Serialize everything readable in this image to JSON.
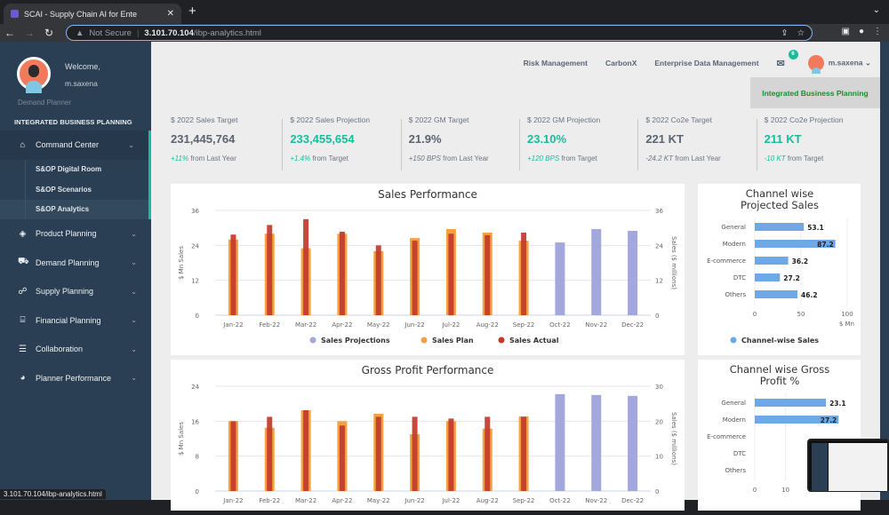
{
  "browser": {
    "tab_title": "SCAI - Supply Chain AI for Ente",
    "security": "Not Secure",
    "url_host": "3.101.70.104",
    "url_path": "/ibp-analytics.html",
    "status_url": "3.101.70.104/ibp-analytics.html"
  },
  "sidebar": {
    "welcome": "Welcome,",
    "username": "m.saxena",
    "role": "Demand Planner",
    "section": "INTEGRATED BUSINESS PLANNING",
    "items": [
      {
        "label": "Command Center",
        "icon": "home-icon"
      },
      {
        "label": "Product Planning",
        "icon": "cube-icon"
      },
      {
        "label": "Demand Planning",
        "icon": "cart-icon"
      },
      {
        "label": "Supply Planning",
        "icon": "sitemap-icon"
      },
      {
        "label": "Financial Planning",
        "icon": "bank-icon"
      },
      {
        "label": "Collaboration",
        "icon": "list-icon"
      },
      {
        "label": "Planner Performance",
        "icon": "pie-icon"
      }
    ],
    "subitems": [
      {
        "label": "S&OP Digital Room"
      },
      {
        "label": "S&OP Scenarios"
      },
      {
        "label": "S&OP Analytics"
      }
    ]
  },
  "header": {
    "links": [
      "Risk Management",
      "CarbonX",
      "Enterprise Data Management"
    ],
    "mail_count": "6",
    "user": "m.saxena",
    "active_module": "Integrated Business Planning"
  },
  "kpis": [
    {
      "label": "$ 2022 Sales Target",
      "value": "231,445,764",
      "delta": "+11%",
      "suffix": " from Last Year"
    },
    {
      "label": "$ 2022 Sales Projection",
      "value": "233,455,654",
      "delta": "+1.4%",
      "suffix": " from Target"
    },
    {
      "label": "$ 2022 GM Target",
      "value": "21.9%",
      "delta": "+150 BPS",
      "suffix": " from Last Year"
    },
    {
      "label": "$ 2022 GM Projection",
      "value": "23.10%",
      "delta": "+120 BPS",
      "suffix": " from Target"
    },
    {
      "label": "$ 2022 Co2e Target",
      "value": "221 KT",
      "delta": "-24.2 KT",
      "suffix": " from Last Year"
    },
    {
      "label": "$ 2022 Co2e Projection",
      "value": "211 KT",
      "delta": "-10 KT",
      "suffix": " from Target"
    }
  ],
  "colors": {
    "projection": "#a3a8dc",
    "plan": "#f5a142",
    "actual": "#c0392b",
    "channel": "#6fa8e6",
    "accent": "#1abb9c"
  },
  "chart_data": [
    {
      "type": "bar",
      "title": "Sales Performance",
      "ylabel": "$ Mn Sales",
      "ylabel_right": "Sales ($ millions)",
      "ylim": [
        0,
        36
      ],
      "yticks": [
        0,
        12,
        24,
        36
      ],
      "ylim_right": [
        0,
        36
      ],
      "yticks_right": [
        0,
        12,
        24,
        36
      ],
      "grid": true,
      "legend": "bottom",
      "categories": [
        "Jan-22",
        "Feb-22",
        "Mar-22",
        "Apr-22",
        "May-22",
        "Jun-22",
        "Jul-22",
        "Aug-22",
        "Sep-22",
        "Oct-22",
        "Nov-22",
        "Dec-22"
      ],
      "series": [
        {
          "name": "Sales Projections",
          "values": [
            null,
            null,
            null,
            null,
            null,
            null,
            null,
            null,
            null,
            25,
            29.6,
            29
          ]
        },
        {
          "name": "Sales Plan",
          "values": [
            26,
            28,
            23,
            28,
            22,
            26.5,
            29.6,
            28.4,
            25.6,
            null,
            null,
            null
          ]
        },
        {
          "name": "Sales Actual",
          "values": [
            27.7,
            31,
            33,
            28.7,
            24,
            25.6,
            28,
            27.5,
            28.4,
            null,
            null,
            null
          ]
        }
      ]
    },
    {
      "type": "bar",
      "title": "Gross Profit Performance",
      "ylabel": "$ Mn Sales",
      "ylabel_right": "Sales ($ millions)",
      "ylim": [
        0,
        24
      ],
      "yticks": [
        0,
        8,
        16,
        24
      ],
      "ylim_right": [
        0,
        30
      ],
      "yticks_right": [
        0,
        10,
        20,
        30
      ],
      "grid": true,
      "categories": [
        "Jan-22",
        "Feb-22",
        "Mar-22",
        "Apr-22",
        "May-22",
        "Jun-22",
        "Jul-22",
        "Aug-22",
        "Sep-22",
        "Oct-22",
        "Nov-22",
        "Dec-22"
      ],
      "series": [
        {
          "name": "Sales Projections",
          "values": [
            null,
            null,
            null,
            null,
            null,
            null,
            null,
            null,
            null,
            22.2,
            22,
            21.8
          ]
        },
        {
          "name": "Sales Plan",
          "values": [
            16,
            14.5,
            18.5,
            16,
            17.7,
            13,
            16,
            14.3,
            17.1,
            null,
            null,
            null
          ]
        },
        {
          "name": "Sales Actual",
          "values": [
            16,
            17,
            18.5,
            15,
            17,
            17,
            16.6,
            17,
            17,
            null,
            null,
            null
          ]
        }
      ]
    },
    {
      "type": "bar",
      "orientation": "horizontal",
      "title": "Channel wise Projected Sales",
      "xlabel": "$ Mn",
      "xlim": [
        0,
        100
      ],
      "xticks": [
        0,
        50,
        100
      ],
      "legend": "bottom",
      "categories": [
        "General",
        "Modern",
        "E-commerce",
        "DTC",
        "Others"
      ],
      "series": [
        {
          "name": "Channel-wise Sales",
          "values": [
            53.1,
            87.2,
            36.2,
            27.2,
            46.2
          ]
        }
      ]
    },
    {
      "type": "bar",
      "orientation": "horizontal",
      "title": "Channel wise Gross Profit %",
      "xlim": [
        0,
        30
      ],
      "xticks": [
        0,
        10
      ],
      "categories": [
        "General",
        "Modern",
        "E-commerce",
        "DTC",
        "Others"
      ],
      "series": [
        {
          "values": [
            23.1,
            27.2,
            null,
            null,
            null
          ]
        }
      ]
    }
  ]
}
